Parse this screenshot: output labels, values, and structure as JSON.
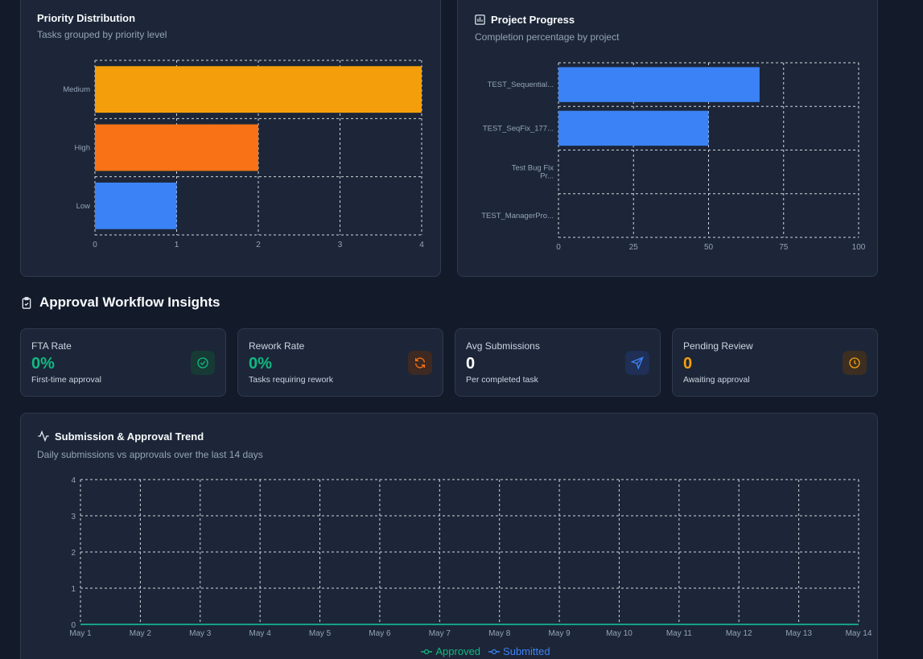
{
  "priority": {
    "title": "Priority Distribution",
    "subtitle": "Tasks grouped by priority level"
  },
  "progress": {
    "title": "Project Progress",
    "subtitle": "Completion percentage by project",
    "icon": "chart-bar-icon"
  },
  "approval": {
    "title": "Approval Workflow Insights",
    "icon": "clipboard-check-icon"
  },
  "stats": [
    {
      "label": "FTA Rate",
      "value": "0%",
      "note": "First-time approval",
      "color": "#10b981",
      "icon": "check-circle-icon"
    },
    {
      "label": "Rework Rate",
      "value": "0%",
      "note": "Tasks requiring rework",
      "color": "#10b981",
      "icon": "refresh-icon"
    },
    {
      "label": "Avg Submissions",
      "value": "0",
      "note": "Per completed task",
      "color": "#ffffff",
      "icon": "send-icon"
    },
    {
      "label": "Pending Review",
      "value": "0",
      "note": "Awaiting approval",
      "color": "#f59e0b",
      "icon": "clock-icon"
    }
  ],
  "trend": {
    "title": "Submission & Approval Trend",
    "subtitle": "Daily submissions vs approvals over the last 14 days",
    "icon": "activity-icon",
    "legend": {
      "approved": "Approved",
      "submitted": "Submitted"
    }
  },
  "chart_data": [
    {
      "type": "bar",
      "orientation": "horizontal",
      "categories": [
        "Medium",
        "High",
        "Low"
      ],
      "values": [
        4,
        2,
        1
      ],
      "colors": [
        "#f59e0b",
        "#f97316",
        "#3b82f6"
      ],
      "xlim": [
        0,
        4
      ],
      "xticks": [
        "0",
        "1",
        "2",
        "3",
        "4"
      ],
      "grid": true
    },
    {
      "type": "bar",
      "orientation": "horizontal",
      "categories": [
        "TEST_Sequential...",
        "TEST_SeqFix_177...",
        "Test Bug Fix Pr...",
        "TEST_ManagerPro..."
      ],
      "values": [
        67,
        50,
        0,
        0
      ],
      "colors": [
        "#3b82f6",
        "#3b82f6",
        "#3b82f6",
        "#3b82f6"
      ],
      "xlim": [
        0,
        100
      ],
      "xticks": [
        "0",
        "25",
        "50",
        "75",
        "100"
      ],
      "grid": true
    },
    {
      "type": "line",
      "categories": [
        "May 1",
        "May 2",
        "May 3",
        "May 4",
        "May 5",
        "May 6",
        "May 7",
        "May 8",
        "May 9",
        "May 10",
        "May 11",
        "May 12",
        "May 13",
        "May 14"
      ],
      "series": [
        {
          "name": "Approved",
          "color": "#10b981",
          "values": [
            0,
            0,
            0,
            0,
            0,
            0,
            0,
            0,
            0,
            0,
            0,
            0,
            0,
            0
          ]
        },
        {
          "name": "Submitted",
          "color": "#3b82f6",
          "values": [
            0,
            0,
            0,
            0,
            0,
            0,
            0,
            0,
            0,
            0,
            0,
            0,
            0,
            0
          ]
        }
      ],
      "ylim": [
        0,
        4
      ],
      "yticks": [
        "0",
        "1",
        "2",
        "3",
        "4"
      ],
      "grid": true,
      "legend": "bottom"
    }
  ]
}
